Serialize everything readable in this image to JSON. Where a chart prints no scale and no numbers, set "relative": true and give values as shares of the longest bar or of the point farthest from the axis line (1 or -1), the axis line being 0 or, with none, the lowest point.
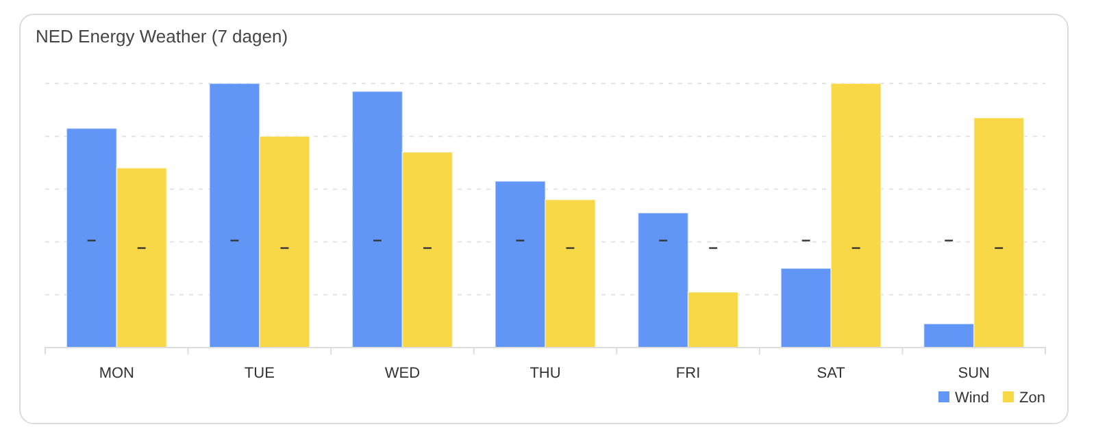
{
  "chart_data": {
    "type": "bar",
    "title": "NED Energy Weather (7 dagen)",
    "categories": [
      "MON",
      "TUE",
      "WED",
      "THU",
      "FRI",
      "SAT",
      "SUN"
    ],
    "relative": true,
    "grid": "y",
    "legend": "bottom right",
    "series": [
      {
        "name": "Wind",
        "color": "#6196f7",
        "values": [
          0.83,
          1,
          0.97,
          0.63,
          0.51,
          0.3,
          0.09
        ]
      },
      {
        "name": "Zon",
        "color": "#f8d846",
        "values": [
          0.68,
          0.8,
          0.74,
          0.56,
          0.21,
          1,
          0.87
        ]
      }
    ],
    "annotations": [
      {
        "text": "–",
        "x": "MON",
        "y": 0.41
      },
      {
        "text": "–",
        "x": "MON",
        "y": 0.38
      },
      {
        "text": "–",
        "x": "TUE",
        "y": 0.41
      },
      {
        "text": "–",
        "x": "TUE",
        "y": 0.38
      },
      {
        "text": "–",
        "x": "WED",
        "y": 0.41
      },
      {
        "text": "–",
        "x": "WED",
        "y": 0.38
      },
      {
        "text": "–",
        "x": "THU",
        "y": 0.41
      },
      {
        "text": "–",
        "x": "THU",
        "y": 0.38
      },
      {
        "text": "–",
        "x": "FRI",
        "y": 0.41
      },
      {
        "text": "–",
        "x": "FRI",
        "y": 0.38
      },
      {
        "text": "–",
        "x": "SAT",
        "y": 0.41
      },
      {
        "text": "–",
        "x": "SAT",
        "y": 0.38
      },
      {
        "text": "–",
        "x": "SUN",
        "y": 0.41
      },
      {
        "text": "–",
        "x": "SUN",
        "y": 0.38
      }
    ]
  }
}
